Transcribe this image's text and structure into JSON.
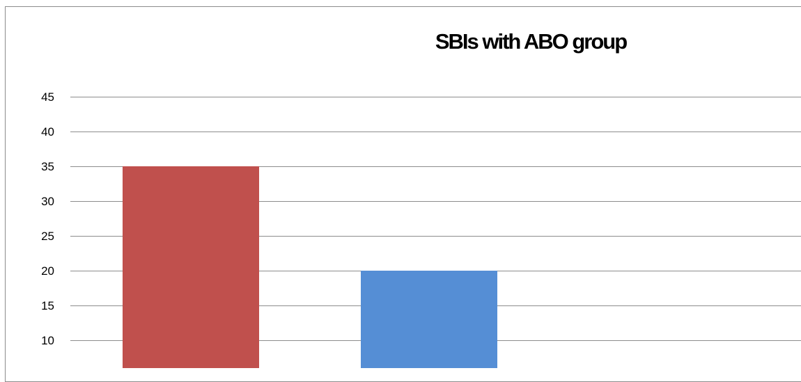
{
  "chart_data": {
    "type": "bar",
    "title": "SBIs with ABO group",
    "xlabel": "",
    "ylabel": "",
    "categories": [
      "",
      ""
    ],
    "values": [
      35,
      20
    ],
    "colors": [
      "#c0504d",
      "#558ed5"
    ],
    "ylim": [
      0,
      45
    ],
    "yticks": [
      5,
      10,
      15,
      20,
      25,
      30,
      35,
      40,
      45
    ],
    "grid": true,
    "legend": "none"
  }
}
